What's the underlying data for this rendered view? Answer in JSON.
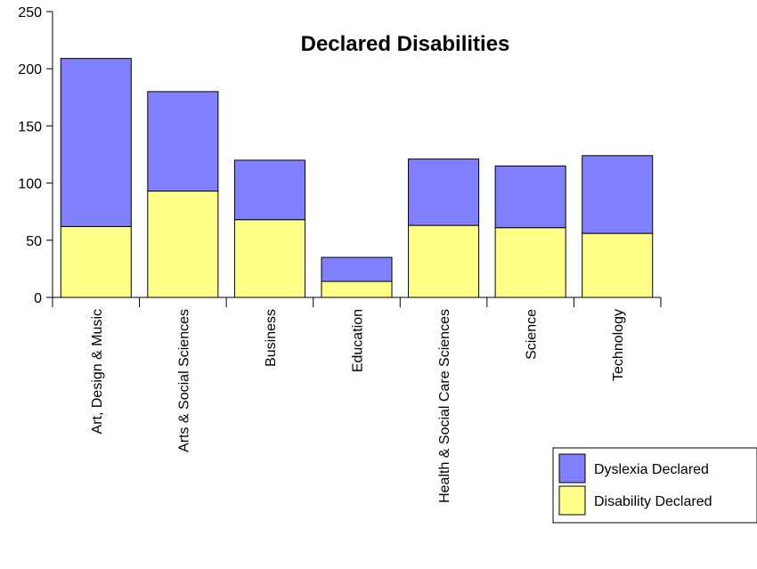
{
  "chart_data": {
    "type": "bar",
    "stacked": true,
    "title": "Declared Disabilities",
    "xlabel": "",
    "ylabel": "",
    "ylim": [
      0,
      250
    ],
    "yticks": [
      "0",
      "50",
      "100",
      "150",
      "200",
      "250"
    ],
    "categories": [
      "Art, Design & Music",
      "Arts & Social Sciences",
      "Business",
      "Education",
      "Health & Social Care Sciences",
      "Science",
      "Technology"
    ],
    "series": [
      {
        "name": "Disability Declared",
        "color": "#ffff88",
        "values": [
          62,
          93,
          68,
          14,
          63,
          61,
          56
        ]
      },
      {
        "name": "Dyslexia Declared",
        "color": "#8080ff",
        "values": [
          147,
          87,
          52,
          21,
          58,
          54,
          68
        ]
      }
    ],
    "grid": false,
    "legend_position": "bottom-right"
  }
}
